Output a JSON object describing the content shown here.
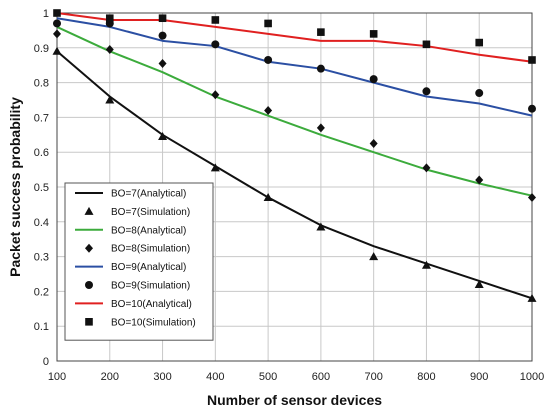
{
  "chart_data": {
    "type": "line",
    "xlabel": "Number of sensor devices",
    "ylabel": "Packet success probability",
    "x": [
      100,
      200,
      300,
      400,
      500,
      600,
      700,
      800,
      900,
      1000
    ],
    "xlim": [
      100,
      1000
    ],
    "ylim": [
      0,
      1
    ],
    "xticks": [
      100,
      200,
      300,
      400,
      500,
      600,
      700,
      800,
      900,
      1000
    ],
    "yticks": [
      0,
      0.1,
      0.2,
      0.3,
      0.4,
      0.5,
      0.6,
      0.7,
      0.8,
      0.9,
      1
    ],
    "ytick_labels": [
      "0",
      "0.1",
      "0.2",
      "0.3",
      "0.4",
      "0.5",
      "0.6",
      "0.7",
      "0.8",
      "0.9",
      "1"
    ],
    "grid": true,
    "legend_position": "bottom-left",
    "series": [
      {
        "name": "BO=7(Analytical)",
        "style": "line",
        "color": "#111111",
        "values": [
          0.89,
          0.76,
          0.65,
          0.56,
          0.47,
          0.39,
          0.33,
          0.28,
          0.23,
          0.18
        ]
      },
      {
        "name": "BO=7(Simulation)",
        "style": "marker",
        "marker": "triangle",
        "color": "#111111",
        "values": [
          0.89,
          0.75,
          0.645,
          0.555,
          0.47,
          0.385,
          0.3,
          0.275,
          0.22,
          0.18
        ]
      },
      {
        "name": "BO=8(Analytical)",
        "style": "line",
        "color": "#3cab3c",
        "values": [
          0.96,
          0.89,
          0.83,
          0.76,
          0.705,
          0.65,
          0.6,
          0.55,
          0.51,
          0.475
        ]
      },
      {
        "name": "BO=8(Simulation)",
        "style": "marker",
        "marker": "diamond",
        "color": "#111111",
        "values": [
          0.94,
          0.895,
          0.855,
          0.765,
          0.72,
          0.67,
          0.625,
          0.555,
          0.52,
          0.47
        ]
      },
      {
        "name": "BO=9(Analytical)",
        "style": "line",
        "color": "#2b4fa3",
        "values": [
          0.985,
          0.96,
          0.92,
          0.905,
          0.86,
          0.84,
          0.8,
          0.76,
          0.74,
          0.705
        ]
      },
      {
        "name": "BO=9(Simulation)",
        "style": "marker",
        "marker": "circle",
        "color": "#111111",
        "values": [
          0.97,
          0.97,
          0.935,
          0.91,
          0.865,
          0.84,
          0.81,
          0.775,
          0.77,
          0.725
        ]
      },
      {
        "name": "BO=10(Analytical)",
        "style": "line",
        "color": "#e02020",
        "values": [
          1.0,
          0.98,
          0.98,
          0.96,
          0.94,
          0.92,
          0.92,
          0.905,
          0.88,
          0.86
        ]
      },
      {
        "name": "BO=10(Simulation)",
        "style": "marker",
        "marker": "square",
        "color": "#111111",
        "values": [
          1.0,
          0.985,
          0.985,
          0.98,
          0.97,
          0.945,
          0.94,
          0.91,
          0.915,
          0.865
        ]
      }
    ]
  }
}
